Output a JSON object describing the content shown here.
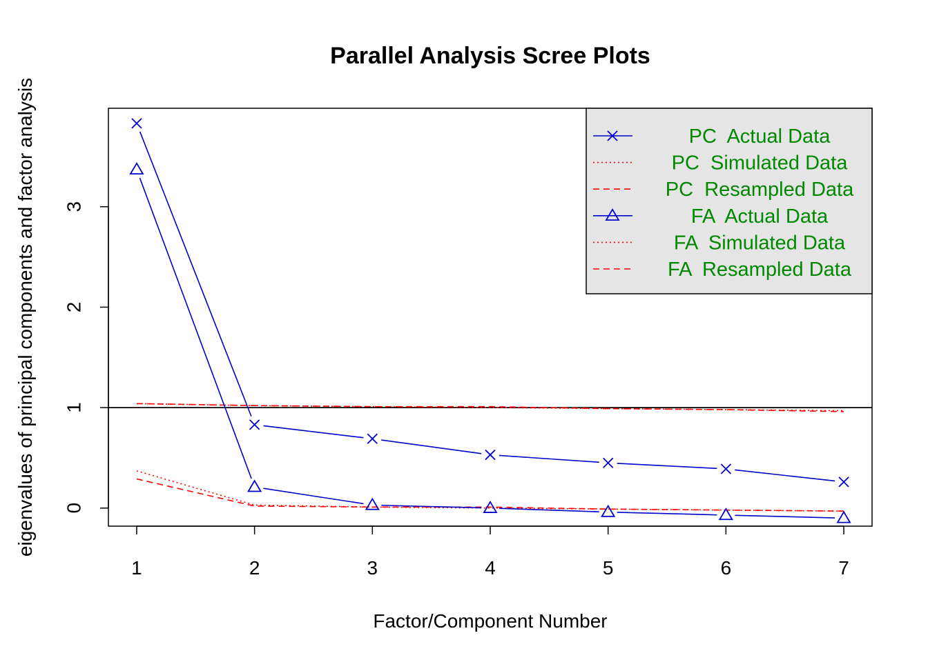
{
  "chart_data": {
    "type": "line",
    "title": "Parallel Analysis Scree Plots",
    "xlabel": "Factor/Component Number",
    "ylabel": "eigenvalues of principal components and factor analysis",
    "xlim": [
      0.76,
      7.24
    ],
    "ylim": [
      -0.18,
      3.98
    ],
    "x": [
      1,
      2,
      3,
      4,
      5,
      6,
      7
    ],
    "x_ticks": [
      1,
      2,
      3,
      4,
      5,
      6,
      7
    ],
    "y_ticks": [
      0,
      1,
      2,
      3
    ],
    "reference_line": 1,
    "series": [
      {
        "name": "PC  Actual Data",
        "values": [
          3.83,
          0.83,
          0.69,
          0.53,
          0.45,
          0.39,
          0.26
        ],
        "color": "#0000cc",
        "line": "solid",
        "marker": "x"
      },
      {
        "name": "PC  Simulated Data",
        "values": [
          1.04,
          1.02,
          1.01,
          1.0,
          0.99,
          0.98,
          0.97
        ],
        "color": "#ff0000",
        "line": "dotted",
        "marker": "none"
      },
      {
        "name": "PC  Resampled Data",
        "values": [
          1.04,
          1.02,
          1.01,
          1.01,
          0.99,
          0.98,
          0.96
        ],
        "color": "#ff0000",
        "line": "dashed",
        "marker": "none"
      },
      {
        "name": "FA  Actual Data",
        "values": [
          3.37,
          0.21,
          0.03,
          0.0,
          -0.04,
          -0.07,
          -0.1
        ],
        "color": "#0000cc",
        "line": "solid",
        "marker": "triangle"
      },
      {
        "name": "FA  Simulated Data",
        "values": [
          0.37,
          0.03,
          0.01,
          0.0,
          -0.01,
          -0.02,
          -0.03
        ],
        "color": "#ff0000",
        "line": "dotted",
        "marker": "none"
      },
      {
        "name": "FA  Resampled Data",
        "values": [
          0.29,
          0.02,
          0.01,
          0.01,
          -0.01,
          -0.02,
          -0.03
        ],
        "color": "#ff0000",
        "line": "dashed",
        "marker": "none"
      }
    ],
    "legend": {
      "position": "top-right",
      "background": "#e5e5e5",
      "text_color": "#008800"
    }
  }
}
